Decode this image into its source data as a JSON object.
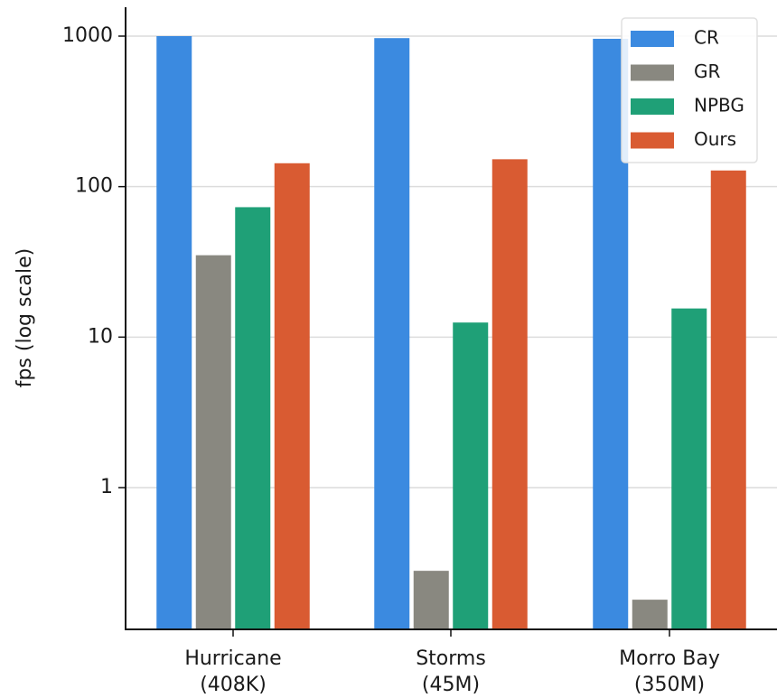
{
  "chart_data": {
    "type": "bar",
    "yscale": "log",
    "ylabel": "fps (log scale)",
    "xlabel": "",
    "ylim": [
      0.15,
      1600
    ],
    "yticks": [
      {
        "value": 1,
        "label": "1"
      },
      {
        "value": 10,
        "label": "10"
      },
      {
        "value": 100,
        "label": "100"
      },
      {
        "value": 1000,
        "label": "1000"
      }
    ],
    "grid": "horizontal",
    "legend_position": "top-right",
    "categories": [
      {
        "line1": "Hurricane",
        "line2": "(408K)"
      },
      {
        "line1": "Storms",
        "line2": "(45M)"
      },
      {
        "line1": "Morro Bay",
        "line2": "(350M)"
      }
    ],
    "series": [
      {
        "name": "CR",
        "color": "#3b8ae0",
        "values": [
          1000,
          970,
          960
        ]
      },
      {
        "name": "GR",
        "color": "#898880",
        "values": [
          35,
          0.28,
          0.18
        ]
      },
      {
        "name": "NPBG",
        "color": "#1fa077",
        "values": [
          73,
          12.5,
          15.5
        ]
      },
      {
        "name": "Ours",
        "color": "#d95b32",
        "values": [
          143,
          152,
          128
        ]
      }
    ]
  }
}
